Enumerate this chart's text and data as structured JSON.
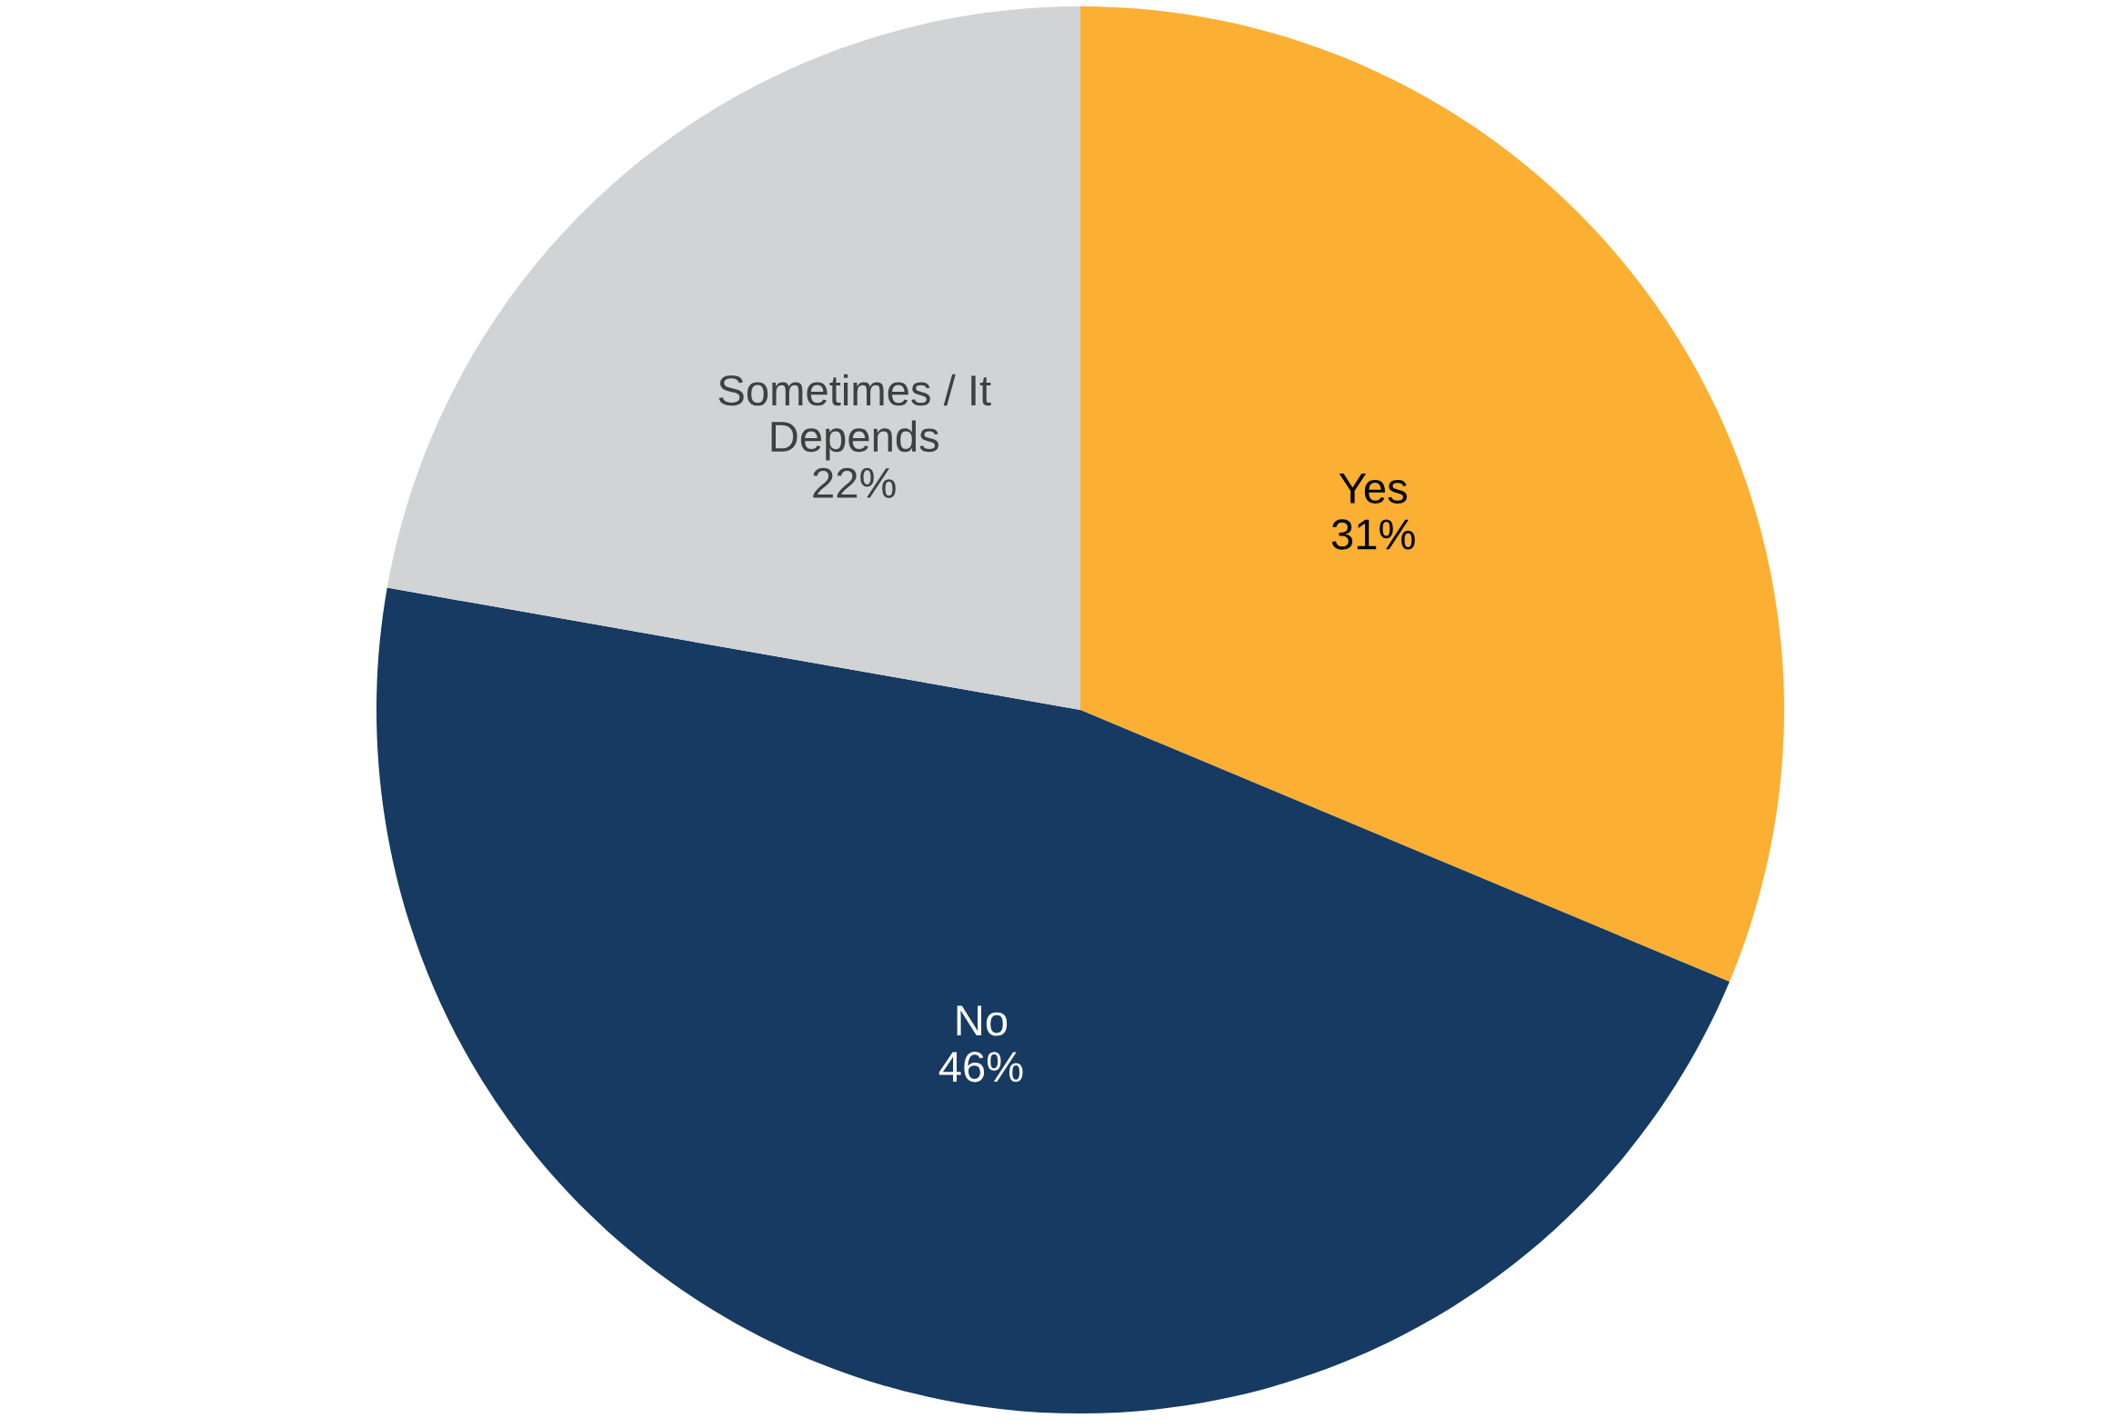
{
  "chart_data": {
    "type": "pie",
    "categories": [
      "Yes",
      "No",
      "Sometimes / It\nDepends"
    ],
    "values": [
      31,
      46,
      22
    ],
    "value_labels": [
      "31%",
      "46%",
      "22%"
    ],
    "colors": [
      "#fbb034",
      "#163a62",
      "#d1d3d4"
    ],
    "legend": false
  }
}
